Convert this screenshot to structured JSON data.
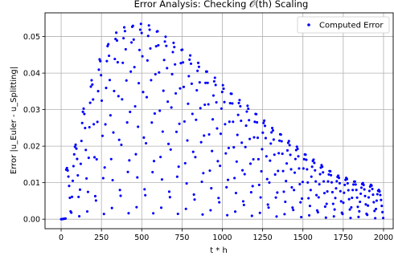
{
  "chart_data": {
    "type": "scatter",
    "title": "Error Analysis: Checking 𝒪(th) Scaling",
    "xlabel": "t * h",
    "ylabel": "Error |u_Euler - u_Splitting|",
    "xlim": [
      -100,
      2060
    ],
    "ylim": [
      -0.0026,
      0.0565
    ],
    "x_ticks": [
      0,
      250,
      500,
      750,
      1000,
      1250,
      1500,
      1750,
      2000
    ],
    "x_tick_labels": [
      "0",
      "250",
      "500",
      "750",
      "1000",
      "1250",
      "1500",
      "1750",
      "2000"
    ],
    "y_ticks": [
      0.0,
      0.01,
      0.02,
      0.03,
      0.04,
      0.05
    ],
    "y_tick_labels": [
      "0.00",
      "0.01",
      "0.02",
      "0.03",
      "0.04",
      "0.05"
    ],
    "grid": true,
    "legend_position": "top-right",
    "series": [
      {
        "name": "Computed Error",
        "color": "#0000ff",
        "marker": "dot",
        "description_points": {
          "x_range": [
            0,
            2000
          ],
          "oscillation_period": 51,
          "envelope_peaks": [
            {
              "x": 60,
              "y": 0.014
            },
            {
              "x": 110,
              "y": 0.0255
            },
            {
              "x": 160,
              "y": 0.034
            },
            {
              "x": 210,
              "y": 0.041
            },
            {
              "x": 260,
              "y": 0.046
            },
            {
              "x": 310,
              "y": 0.0495
            },
            {
              "x": 360,
              "y": 0.052
            },
            {
              "x": 410,
              "y": 0.053
            },
            {
              "x": 460,
              "y": 0.0535
            },
            {
              "x": 510,
              "y": 0.0535
            },
            {
              "x": 560,
              "y": 0.053
            },
            {
              "x": 610,
              "y": 0.0515
            },
            {
              "x": 660,
              "y": 0.0495
            },
            {
              "x": 710,
              "y": 0.048
            },
            {
              "x": 760,
              "y": 0.0465
            },
            {
              "x": 810,
              "y": 0.0445
            },
            {
              "x": 860,
              "y": 0.0425
            },
            {
              "x": 910,
              "y": 0.0405
            },
            {
              "x": 960,
              "y": 0.0385
            },
            {
              "x": 1010,
              "y": 0.0365
            },
            {
              "x": 1060,
              "y": 0.0345
            },
            {
              "x": 1110,
              "y": 0.0325
            },
            {
              "x": 1160,
              "y": 0.031
            },
            {
              "x": 1210,
              "y": 0.029
            },
            {
              "x": 1260,
              "y": 0.027
            },
            {
              "x": 1310,
              "y": 0.025
            },
            {
              "x": 1360,
              "y": 0.0235
            },
            {
              "x": 1410,
              "y": 0.0215
            },
            {
              "x": 1460,
              "y": 0.02
            },
            {
              "x": 1510,
              "y": 0.018
            },
            {
              "x": 1560,
              "y": 0.0165
            },
            {
              "x": 1610,
              "y": 0.015
            },
            {
              "x": 1660,
              "y": 0.0135
            },
            {
              "x": 1710,
              "y": 0.012
            },
            {
              "x": 1760,
              "y": 0.0115
            },
            {
              "x": 1810,
              "y": 0.0105
            },
            {
              "x": 1860,
              "y": 0.01
            },
            {
              "x": 1910,
              "y": 0.0095
            },
            {
              "x": 1960,
              "y": 0.0092
            },
            {
              "x": 2000,
              "y": 0.0052
            }
          ]
        }
      }
    ]
  }
}
